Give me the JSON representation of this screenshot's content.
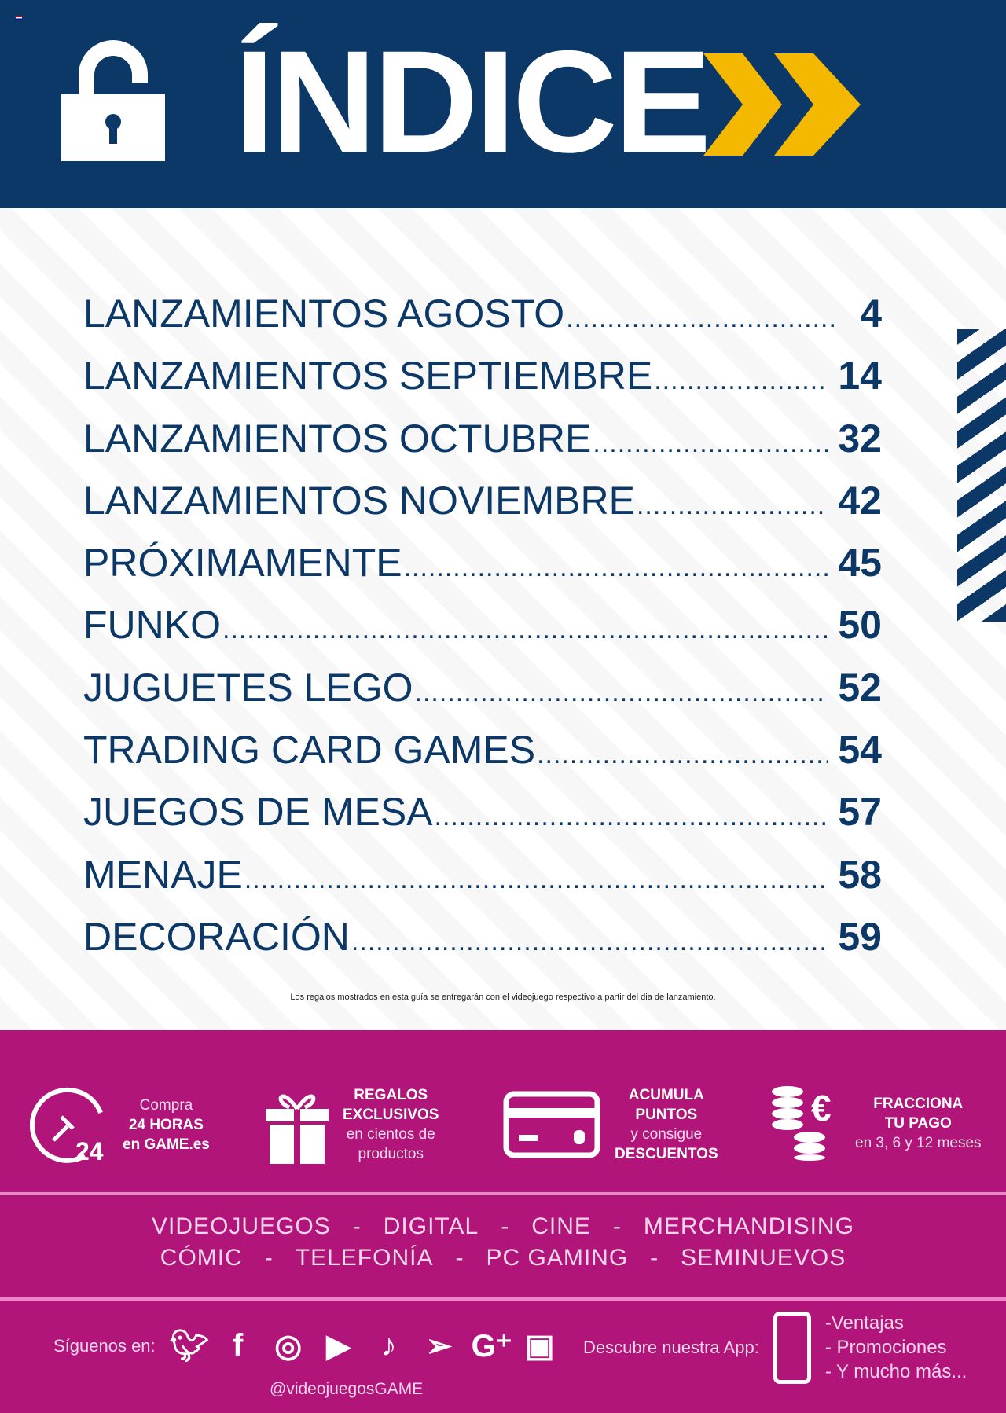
{
  "header": {
    "title": "ÍNDICE"
  },
  "toc": [
    {
      "label": "LANZAMIENTOS AGOSTO",
      "page": "4"
    },
    {
      "label": "LANZAMIENTOS SEPTIEMBRE",
      "page": "14"
    },
    {
      "label": "LANZAMIENTOS OCTUBRE",
      "page": "32"
    },
    {
      "label": "LANZAMIENTOS NOVIEMBRE",
      "page": "42"
    },
    {
      "label": "PRÓXIMAMENTE",
      "page": "45"
    },
    {
      "label": "FUNKO",
      "page": "50"
    },
    {
      "label": "JUGUETES LEGO",
      "page": "52"
    },
    {
      "label": "TRADING CARD GAMES",
      "page": "54"
    },
    {
      "label": "JUEGOS DE MESA",
      "page": "57"
    },
    {
      "label": "MENAJE",
      "page": "58"
    },
    {
      "label": "DECORACIÓN",
      "page": "59"
    }
  ],
  "disclaimer": "Los regalos mostrados en esta guía se entregarán con el videojuego respectivo a partir del dia de lanzamiento.",
  "features": [
    {
      "l1": "Compra",
      "l2": "24 HORAS",
      "l3": "en GAME.es",
      "icon_text": "24"
    },
    {
      "l1": "REGALOS",
      "l2": "EXCLUSIVOS",
      "l3": "en cientos de",
      "l4": "productos"
    },
    {
      "l1": "ACUMULA",
      "l2": "PUNTOS",
      "l3": "y consigue",
      "l4": "DESCUENTOS"
    },
    {
      "l1": "FRACCIONA",
      "l2": "TU PAGO",
      "l3": "en 3, 6 y 12 meses",
      "icon_text": "€"
    }
  ],
  "categories": {
    "row1": [
      "VIDEOJUEGOS",
      "-",
      "DIGITAL",
      "-",
      "CINE",
      "-",
      "MERCHANDISING"
    ],
    "row2": [
      "CÓMIC",
      "-",
      "TELEFONÍA",
      "-",
      "PC GAMING",
      "-",
      "SEMINUEVOS"
    ]
  },
  "social": {
    "label": "Síguenos en:",
    "handle": "@videojuegosGAME"
  },
  "app": {
    "label": "Descubre nuestra App:",
    "items": [
      "-Ventajas",
      "- Promociones",
      "- Y mucho más..."
    ]
  },
  "colors": {
    "navy": "#0c3868",
    "yellow": "#f5b800",
    "magenta": "#b1157a"
  }
}
